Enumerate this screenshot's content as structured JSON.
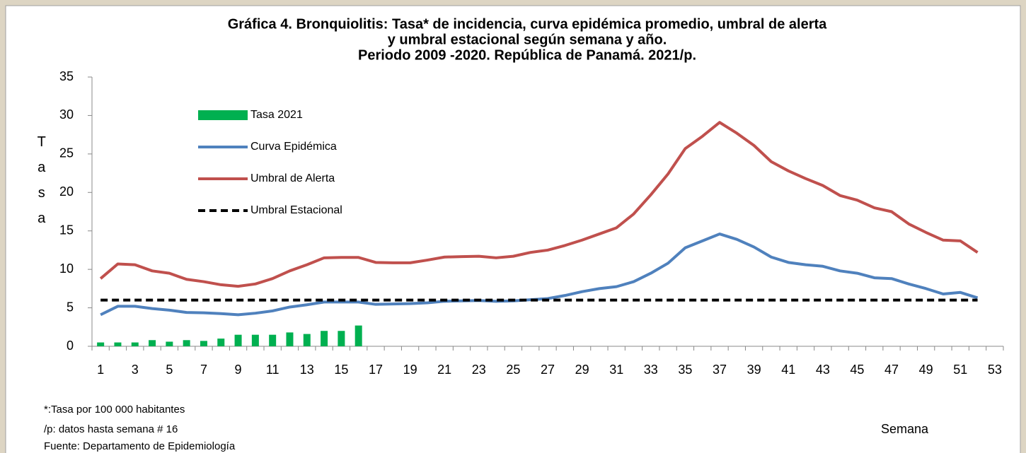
{
  "chart_data": {
    "type": "line",
    "title": [
      "Gráfica 4. Bronquiolitis: Tasa* de incidencia, curva epidémica promedio, umbral de alerta",
      "y umbral estacional según semana y año.",
      "Periodo 2009 -2020. República de Panamá. 2021/p."
    ],
    "y_label": "Tasa",
    "x_label": "Semana",
    "notes": [
      "*:Tasa por 100 000 habitantes",
      "/p: datos hasta semana  # 16",
      "Fuente: Departamento de Epidemiología"
    ],
    "categories": [
      1,
      null,
      3,
      null,
      5,
      null,
      7,
      null,
      9,
      null,
      11,
      null,
      13,
      null,
      15,
      null,
      17,
      null,
      19,
      null,
      21,
      null,
      23,
      null,
      25,
      null,
      27,
      null,
      29,
      null,
      31,
      null,
      33,
      null,
      35,
      null,
      37,
      null,
      39,
      null,
      41,
      null,
      43,
      null,
      45,
      null,
      47,
      null,
      49,
      null,
      51,
      null,
      53
    ],
    "ylim": [
      0,
      35
    ],
    "yticks": [
      0,
      5,
      10,
      15,
      20,
      25,
      30,
      35
    ],
    "grid": false,
    "legend": "upper left",
    "series": [
      {
        "name": "Tasa 2021",
        "kind": "bar",
        "color": "#00b050",
        "values": [
          0.5,
          0.5,
          0.5,
          0.8,
          0.6,
          0.8,
          0.7,
          1.0,
          1.5,
          1.5,
          1.5,
          1.8,
          1.6,
          2.0,
          2.0,
          2.7,
          null,
          null,
          null,
          null,
          null,
          null,
          null,
          null,
          null,
          null,
          null,
          null,
          null,
          null,
          null,
          null,
          null,
          null,
          null,
          null,
          null,
          null,
          null,
          null,
          null,
          null,
          null,
          null,
          null,
          null,
          null,
          null,
          null,
          null,
          null,
          null,
          null
        ]
      },
      {
        "name": "Curva Epidémica",
        "kind": "line",
        "color": "#4f81bd",
        "values": [
          4.1,
          5.2,
          5.2,
          4.9,
          4.7,
          4.4,
          4.35,
          4.25,
          4.1,
          4.3,
          4.6,
          5.1,
          5.4,
          5.75,
          5.75,
          5.75,
          5.45,
          5.5,
          5.55,
          5.65,
          5.85,
          5.9,
          5.95,
          5.85,
          5.9,
          6.05,
          6.2,
          6.6,
          7.1,
          7.5,
          7.75,
          8.4,
          9.5,
          10.8,
          12.8,
          13.7,
          14.6,
          13.9,
          12.9,
          11.6,
          10.9,
          10.6,
          10.4,
          9.8,
          9.5,
          8.9,
          8.8,
          8.1,
          7.5,
          6.8,
          7.0,
          6.3,
          null
        ]
      },
      {
        "name": "Umbral de Alerta",
        "kind": "line",
        "color": "#c0504d",
        "values": [
          8.8,
          10.7,
          10.6,
          9.8,
          9.5,
          8.7,
          8.4,
          8.0,
          7.8,
          8.1,
          8.8,
          9.8,
          10.6,
          11.5,
          11.55,
          11.55,
          10.9,
          10.85,
          10.85,
          11.2,
          11.6,
          11.65,
          11.7,
          11.5,
          11.7,
          12.2,
          12.5,
          13.1,
          13.8,
          14.6,
          15.4,
          17.2,
          19.7,
          22.4,
          25.7,
          27.3,
          29.1,
          27.7,
          26.1,
          24.0,
          22.8,
          21.8,
          20.9,
          19.6,
          19.0,
          18.0,
          17.5,
          15.9,
          14.8,
          13.8,
          13.7,
          12.2,
          null
        ]
      },
      {
        "name": "Umbral Estacional",
        "kind": "line",
        "style": "dashed",
        "color": "#000000",
        "values": [
          6,
          6,
          6,
          6,
          6,
          6,
          6,
          6,
          6,
          6,
          6,
          6,
          6,
          6,
          6,
          6,
          6,
          6,
          6,
          6,
          6,
          6,
          6,
          6,
          6,
          6,
          6,
          6,
          6,
          6,
          6,
          6,
          6,
          6,
          6,
          6,
          6,
          6,
          6,
          6,
          6,
          6,
          6,
          6,
          6,
          6,
          6,
          6,
          6,
          6,
          6,
          6,
          null
        ]
      }
    ]
  }
}
